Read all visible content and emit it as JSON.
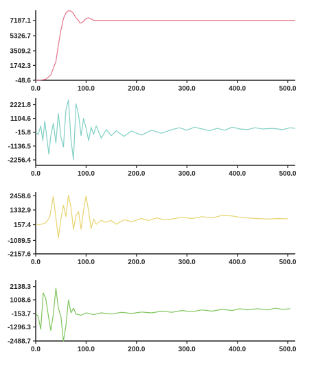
{
  "chart_data": [
    {
      "type": "line",
      "series": [
        {
          "color": "#e5738a",
          "points": [
            [
              0,
              -48.6
            ],
            [
              10,
              -30
            ],
            [
              20,
              80
            ],
            [
              30,
              600
            ],
            [
              40,
              2200
            ],
            [
              45,
              4200
            ],
            [
              50,
              6000
            ],
            [
              55,
              7400
            ],
            [
              60,
              8100
            ],
            [
              65,
              8350
            ],
            [
              70,
              8300
            ],
            [
              75,
              8000
            ],
            [
              80,
              7500
            ],
            [
              85,
              7150
            ],
            [
              88,
              6850
            ],
            [
              92,
              6900
            ],
            [
              96,
              7150
            ],
            [
              100,
              7400
            ],
            [
              105,
              7500
            ],
            [
              110,
              7350
            ],
            [
              115,
              7187.1
            ],
            [
              150,
              7187.1
            ],
            [
              200,
              7187.1
            ],
            [
              300,
              7187.1
            ],
            [
              400,
              7187.1
            ],
            [
              500,
              7187.1
            ],
            [
              515,
              7187.1
            ]
          ]
        }
      ],
      "yticks": [
        "7187.1",
        "5326.7",
        "3509.2",
        "1742.3",
        "-48.6"
      ],
      "ytick_values": [
        7187.1,
        5326.7,
        3509.2,
        1742.3,
        -48.6
      ],
      "xticks": [
        "0.0",
        "100.0",
        "200.0",
        "300.0",
        "400.0",
        "500.0"
      ],
      "xtick_values": [
        0,
        100,
        200,
        300,
        400,
        500
      ],
      "xlim": [
        0,
        515
      ],
      "ylim": [
        -48.6,
        8400
      ]
    },
    {
      "type": "line",
      "series": [
        {
          "color": "#7fcfc4",
          "points": [
            [
              0,
              -15.8
            ],
            [
              5,
              -200
            ],
            [
              10,
              500
            ],
            [
              14,
              -700
            ],
            [
              18,
              900
            ],
            [
              22,
              -400
            ],
            [
              26,
              -1800
            ],
            [
              30,
              -300
            ],
            [
              35,
              700
            ],
            [
              40,
              -900
            ],
            [
              45,
              1500
            ],
            [
              50,
              -400
            ],
            [
              55,
              -1200
            ],
            [
              60,
              1800
            ],
            [
              65,
              2600
            ],
            [
              70,
              -600
            ],
            [
              75,
              -2250
            ],
            [
              80,
              2300
            ],
            [
              85,
              1400
            ],
            [
              90,
              -300
            ],
            [
              95,
              1100
            ],
            [
              100,
              300
            ],
            [
              105,
              -700
            ],
            [
              110,
              400
            ],
            [
              115,
              -200
            ],
            [
              120,
              500
            ],
            [
              130,
              -500
            ],
            [
              140,
              200
            ],
            [
              150,
              -300
            ],
            [
              160,
              100
            ],
            [
              175,
              -350
            ],
            [
              190,
              80
            ],
            [
              210,
              -250
            ],
            [
              230,
              150
            ],
            [
              250,
              -100
            ],
            [
              270,
              200
            ],
            [
              285,
              350
            ],
            [
              300,
              150
            ],
            [
              315,
              400
            ],
            [
              330,
              250
            ],
            [
              345,
              100
            ],
            [
              360,
              300
            ],
            [
              375,
              150
            ],
            [
              390,
              400
            ],
            [
              405,
              250
            ],
            [
              420,
              200
            ],
            [
              435,
              350
            ],
            [
              450,
              250
            ],
            [
              470,
              300
            ],
            [
              490,
              200
            ],
            [
              505,
              350
            ],
            [
              515,
              300
            ]
          ]
        }
      ],
      "yticks": [
        "2221.8",
        "1104.6",
        "-15.8",
        "-1136.5",
        "-2256.4"
      ],
      "ytick_values": [
        2221.8,
        1104.6,
        -15.8,
        -1136.5,
        -2256.4
      ],
      "xticks": [
        "0.0",
        "100.0",
        "200.0",
        "300.0",
        "400.0",
        "500.0"
      ],
      "xtick_values": [
        0,
        100,
        200,
        300,
        400,
        500
      ],
      "xlim": [
        0,
        515
      ],
      "ylim": [
        -2700,
        2750
      ]
    },
    {
      "type": "line",
      "series": [
        {
          "color": "#e8d36e",
          "points": [
            [
              0,
              157.4
            ],
            [
              10,
              180
            ],
            [
              20,
              300
            ],
            [
              28,
              800
            ],
            [
              35,
              2400
            ],
            [
              40,
              700
            ],
            [
              45,
              -900
            ],
            [
              50,
              600
            ],
            [
              55,
              1700
            ],
            [
              60,
              800
            ],
            [
              65,
              2500
            ],
            [
              70,
              1500
            ],
            [
              75,
              -200
            ],
            [
              80,
              900
            ],
            [
              85,
              1200
            ],
            [
              90,
              -200
            ],
            [
              95,
              1300
            ],
            [
              100,
              2450
            ],
            [
              105,
              1200
            ],
            [
              110,
              -150
            ],
            [
              115,
              600
            ],
            [
              120,
              200
            ],
            [
              130,
              500
            ],
            [
              140,
              350
            ],
            [
              150,
              500
            ],
            [
              160,
              200
            ],
            [
              175,
              550
            ],
            [
              190,
              400
            ],
            [
              210,
              650
            ],
            [
              225,
              500
            ],
            [
              240,
              700
            ],
            [
              255,
              550
            ],
            [
              270,
              600
            ],
            [
              290,
              750
            ],
            [
              310,
              650
            ],
            [
              330,
              800
            ],
            [
              350,
              700
            ],
            [
              370,
              900
            ],
            [
              390,
              850
            ],
            [
              405,
              750
            ],
            [
              420,
              700
            ],
            [
              440,
              650
            ],
            [
              460,
              600
            ],
            [
              480,
              650
            ],
            [
              500,
              620
            ]
          ]
        }
      ],
      "yticks": [
        "2458.6",
        "1332.9",
        "157.4",
        "-1089.5",
        "-2157.6"
      ],
      "ytick_values": [
        2458.6,
        1332.9,
        157.4,
        -1089.5,
        -2157.6
      ],
      "xticks": [
        "0.0",
        "100.0",
        "200.0",
        "300.0",
        "400.0",
        "500.0"
      ],
      "xtick_values": [
        0,
        100,
        200,
        300,
        400,
        500
      ],
      "xlim": [
        0,
        515
      ],
      "ylim": [
        -2157.6,
        2750
      ]
    },
    {
      "type": "line",
      "series": [
        {
          "color": "#7ec45a",
          "points": [
            [
              0,
              -153.7
            ],
            [
              5,
              -400
            ],
            [
              10,
              -1500
            ],
            [
              15,
              1600
            ],
            [
              20,
              1100
            ],
            [
              25,
              -300
            ],
            [
              30,
              -1600
            ],
            [
              35,
              -200
            ],
            [
              40,
              2000
            ],
            [
              45,
              300
            ],
            [
              50,
              -400
            ],
            [
              55,
              -2480
            ],
            [
              60,
              -1200
            ],
            [
              65,
              1000
            ],
            [
              70,
              -100
            ],
            [
              75,
              300
            ],
            [
              80,
              -200
            ],
            [
              90,
              -300
            ],
            [
              100,
              -100
            ],
            [
              115,
              -250
            ],
            [
              130,
              -100
            ],
            [
              150,
              -200
            ],
            [
              170,
              -50
            ],
            [
              190,
              -150
            ],
            [
              210,
              -30
            ],
            [
              230,
              -100
            ],
            [
              250,
              50
            ],
            [
              270,
              -50
            ],
            [
              290,
              100
            ],
            [
              310,
              0
            ],
            [
              330,
              150
            ],
            [
              350,
              50
            ],
            [
              370,
              200
            ],
            [
              390,
              100
            ],
            [
              405,
              250
            ],
            [
              420,
              150
            ],
            [
              440,
              250
            ],
            [
              460,
              150
            ],
            [
              475,
              300
            ],
            [
              490,
              200
            ],
            [
              505,
              250
            ]
          ]
        }
      ],
      "yticks": [
        "2138.3",
        "1008.6",
        "-153.7",
        "-1296.3",
        "-2488.7"
      ],
      "ytick_values": [
        2138.3,
        1008.6,
        -153.7,
        -1296.3,
        -2488.7
      ],
      "xticks": [
        "0.0",
        "100.0",
        "200.0",
        "300.0",
        "400.0",
        "500.0"
      ],
      "xtick_values": [
        0,
        100,
        200,
        300,
        400,
        500
      ],
      "xlim": [
        0,
        515
      ],
      "ylim": [
        -2488.7,
        2700
      ]
    }
  ]
}
